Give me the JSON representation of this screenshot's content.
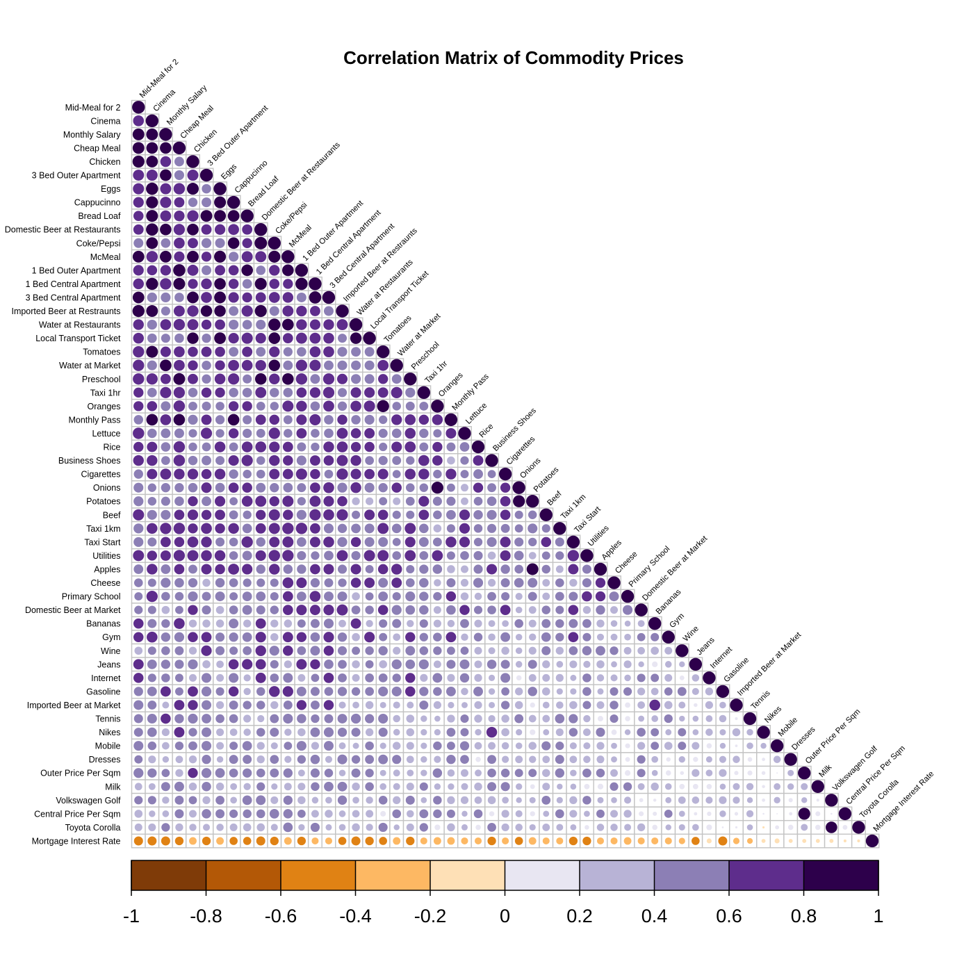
{
  "chart_data": {
    "type": "heatmap",
    "subtype": "correlation-lower-triangle-circles",
    "title": "Correlation Matrix of Commodity Prices",
    "variables": [
      "Mid-Meal for 2",
      "Cinema",
      "Monthly Salary",
      "Cheap Meal",
      "Chicken",
      "3 Bed Outer Apartment",
      "Eggs",
      "Cappucinno",
      "Bread Loaf",
      "Domestic Beer at Restaurants",
      "Coke/Pepsi",
      "McMeal",
      "1 Bed Outer Apartment",
      "1 Bed Central Apartment",
      "3 Bed Central Apartment",
      "Imported Beer at Restraunts",
      "Water at Restaurants",
      "Local Transport Ticket",
      "Tomatoes",
      "Water at Market",
      "Preschool",
      "Taxi 1hr",
      "Oranges",
      "Monthly Pass",
      "Lettuce",
      "Rice",
      "Business Shoes",
      "Cigarettes",
      "Onions",
      "Potatoes",
      "Beef",
      "Taxi 1km",
      "Taxi Start",
      "Utilities",
      "Apples",
      "Cheese",
      "Primary School",
      "Domestic Beer at Market",
      "Bananas",
      "Gym",
      "Wine",
      "Jeans",
      "Internet",
      "Gasoline",
      "Imported Beer at Market",
      "Tennis",
      "Nikes",
      "Mobile",
      "Dresses",
      "Outer Price Per Sqm",
      "Milk",
      "Volkswagen Golf",
      "Central Price Per Sqm",
      "Toyota Corolla",
      "Mortgage Interest Rate"
    ],
    "column_labels": [
      "Mid-Meal for 2",
      "Cinema",
      "Monthly Salary",
      "Cheap Meal",
      "Chicken",
      "3 Bed Outer Apartment",
      "Eggs",
      "Cappucinno",
      "Bread Loaf",
      "Domestic Beer at Restaurants",
      "Coke/Pepsi",
      "McMeal",
      "1 Bed Outer Apartment",
      "1 Bed Central Apartment",
      "3 Bed Central Apartment",
      "Imported Beer at Restraunts",
      "Water at Restaurants",
      "Local Transport Ticket",
      "Tomatoes",
      "Water at Market",
      "Preschool",
      "Taxi 1hr",
      "Oranges",
      "Monthly Pass",
      "Lettuce",
      "Rice",
      "Business Shoes",
      "Cigarettes",
      "Onions",
      "Potatoes",
      "Beef",
      "Taxi 1km",
      "Taxi Start",
      "Utilities",
      "Apples",
      "Cheese",
      "Primary School",
      "Domestic Beer at Market",
      "Bananas",
      "Gym",
      "Wine",
      "Jeans",
      "Internet",
      "Gasoline",
      "Imported Beer at Market",
      "Tennis",
      "Nikes",
      "Mobile",
      "Dresses",
      "Outer Price Per Sqm",
      "Milk",
      "Volkswagen Golf",
      "Central Price Per Sqm",
      "Toyota Corolla",
      "Mortgage Interest Rate"
    ],
    "row_profile": [
      0.78,
      0.78,
      0.7,
      0.76,
      0.7,
      0.7,
      0.7,
      0.68,
      0.7,
      0.72,
      0.72,
      0.72,
      0.7,
      0.7,
      0.7,
      0.68,
      0.66,
      0.64,
      0.62,
      0.62,
      0.62,
      0.6,
      0.56,
      0.6,
      0.5,
      0.52,
      0.55,
      0.55,
      0.45,
      0.45,
      0.55,
      0.55,
      0.55,
      0.55,
      0.45,
      0.42,
      0.42,
      0.4,
      0.35,
      0.38,
      0.35,
      0.3,
      0.25,
      0.3,
      0.22,
      0.22,
      0.22,
      0.18,
      0.17,
      0.18,
      0.12,
      0.1,
      0.08,
      0.06,
      -0.34
    ],
    "mortgage_row_values": [
      -0.5,
      -0.5,
      -0.5,
      -0.45,
      -0.35,
      -0.45,
      -0.35,
      -0.4,
      -0.4,
      -0.5,
      -0.45,
      -0.35,
      -0.45,
      -0.3,
      -0.3,
      -0.4,
      -0.5,
      -0.45,
      -0.4,
      -0.35,
      -0.45,
      -0.3,
      -0.35,
      -0.35,
      -0.3,
      -0.3,
      -0.45,
      -0.3,
      -0.4,
      -0.35,
      -0.3,
      -0.3,
      -0.45,
      -0.45,
      -0.3,
      -0.3,
      -0.35,
      -0.3,
      -0.3,
      -0.3,
      -0.25,
      -0.4,
      -0.15,
      -0.5,
      -0.25,
      -0.2,
      -0.1,
      -0.15,
      -0.1,
      -0.1,
      -0.1,
      -0.1,
      -0.05,
      -0.05
    ],
    "highlights": [
      {
        "row": "Coke/Pepsi",
        "col": "Domestic Beer at Restaurants",
        "value": 0.95
      },
      {
        "row": "1 Bed Central Apartment",
        "col": "1 Bed Outer Apartment",
        "value": 0.92
      },
      {
        "row": "3 Bed Central Apartment",
        "col": "1 Bed Central Apartment",
        "value": 0.92
      },
      {
        "row": "Imported Beer at Restraunts",
        "col": "Domestic Beer at Restaurants",
        "value": 0.88
      },
      {
        "row": "Water at Restaurants",
        "col": "Coke/Pepsi",
        "value": 0.9
      },
      {
        "row": "Oranges",
        "col": "Tomatoes",
        "value": 0.9
      },
      {
        "row": "Onions",
        "col": "Oranges",
        "value": 0.88
      },
      {
        "row": "Potatoes",
        "col": "Onions",
        "value": 0.88
      },
      {
        "row": "Apples",
        "col": "Potatoes",
        "value": 0.85
      },
      {
        "row": "Utilities",
        "col": "Taxi Start",
        "value": 0.8
      },
      {
        "row": "Domestic Beer at Market",
        "col": "Imported Beer at Restraunts",
        "value": 0.75
      },
      {
        "row": "Imported Beer at Market",
        "col": "Bananas",
        "value": 0.72
      },
      {
        "row": "Central Price Per Sqm",
        "col": "Outer Price Per Sqm",
        "value": 0.88
      },
      {
        "row": "Toyota Corolla",
        "col": "Volkswagen Golf",
        "value": 0.82
      },
      {
        "row": "Nikes",
        "col": "Business Shoes",
        "value": 0.7
      },
      {
        "row": "Gasoline",
        "col": "Coke/Pepsi",
        "value": 0.72
      }
    ],
    "colorbar": {
      "breaks": [
        -1,
        -0.8,
        -0.6,
        -0.4,
        -0.2,
        0,
        0.2,
        0.4,
        0.6,
        0.8,
        1
      ],
      "tick_labels": [
        "-1",
        "-0.8",
        "-0.6",
        "-0.4",
        "-0.2",
        "0",
        "0.2",
        "0.4",
        "0.6",
        "0.8",
        "1"
      ],
      "colors": [
        "#7f3b08",
        "#b35806",
        "#e08214",
        "#fdb863",
        "#fee0b6",
        "#e8e6f2",
        "#b8b3d6",
        "#8c7fb5",
        "#5e2d8c",
        "#2d004b"
      ]
    },
    "grid": true,
    "diagonal_value": 1
  }
}
